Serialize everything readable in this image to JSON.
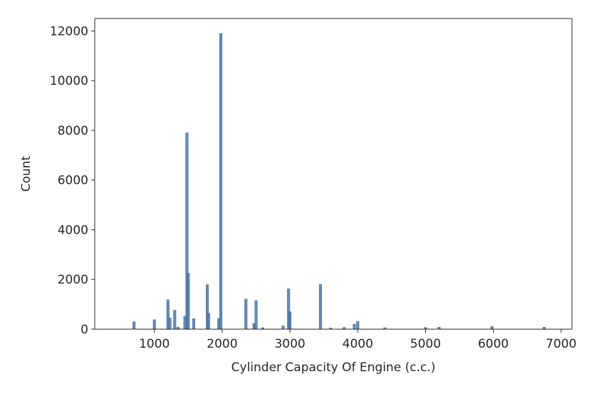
{
  "chart_data": {
    "type": "bar",
    "title": "",
    "xlabel": "Cylinder Capacity Of Engine (c.c.)",
    "ylabel": "Count",
    "xlim": [
      120,
      7160
    ],
    "ylim": [
      0,
      12500
    ],
    "xticks": [
      1000,
      2000,
      3000,
      4000,
      5000,
      6000,
      7000
    ],
    "yticks": [
      0,
      2000,
      4000,
      6000,
      8000,
      10000,
      12000
    ],
    "grid": false,
    "bar_color": "#4c78a8",
    "bars": [
      {
        "x": 700,
        "value": 300
      },
      {
        "x": 1000,
        "value": 380
      },
      {
        "x": 1200,
        "value": 1180
      },
      {
        "x": 1230,
        "value": 450
      },
      {
        "x": 1300,
        "value": 760
      },
      {
        "x": 1350,
        "value": 80
      },
      {
        "x": 1450,
        "value": 520
      },
      {
        "x": 1480,
        "value": 7900
      },
      {
        "x": 1500,
        "value": 2250
      },
      {
        "x": 1580,
        "value": 420
      },
      {
        "x": 1780,
        "value": 1790
      },
      {
        "x": 1800,
        "value": 640
      },
      {
        "x": 1950,
        "value": 430
      },
      {
        "x": 1980,
        "value": 11900
      },
      {
        "x": 2350,
        "value": 1210
      },
      {
        "x": 2470,
        "value": 230
      },
      {
        "x": 2500,
        "value": 1150
      },
      {
        "x": 2600,
        "value": 60
      },
      {
        "x": 2900,
        "value": 130
      },
      {
        "x": 2980,
        "value": 1620
      },
      {
        "x": 3000,
        "value": 700
      },
      {
        "x": 3450,
        "value": 1800
      },
      {
        "x": 3600,
        "value": 50
      },
      {
        "x": 3800,
        "value": 70
      },
      {
        "x": 3950,
        "value": 200
      },
      {
        "x": 4000,
        "value": 310
      },
      {
        "x": 4400,
        "value": 60
      },
      {
        "x": 5000,
        "value": 70
      },
      {
        "x": 5200,
        "value": 80
      },
      {
        "x": 5980,
        "value": 110
      },
      {
        "x": 6750,
        "value": 80
      }
    ]
  }
}
